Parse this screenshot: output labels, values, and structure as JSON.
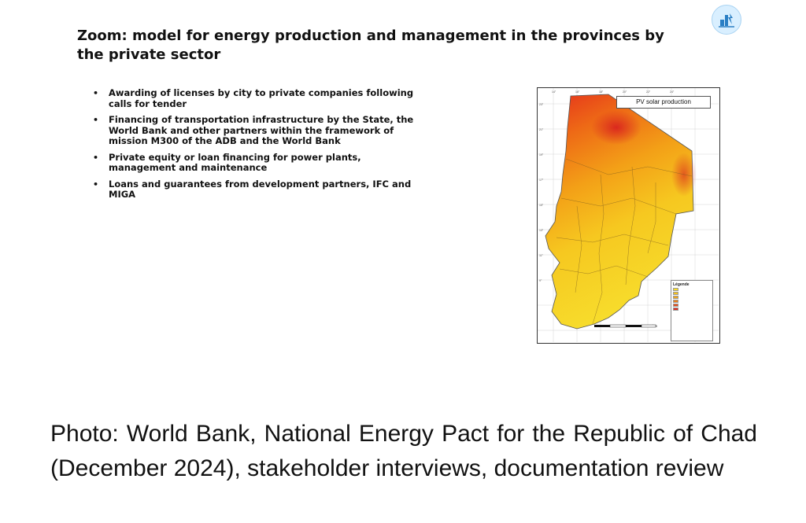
{
  "slide": {
    "logo_icon": "energy-logo-icon",
    "title": "Zoom: model for energy production and management in the provinces by the private sector",
    "bullets": [
      "Awarding of licenses by city to private companies following calls for tender",
      "Financing of transportation infrastructure by the State, the World Bank and other partners within the framework of mission M300 of the ADB and the World Bank",
      "Private equity or loan financing for power plants, management and maintenance",
      "Loans and guarantees from development partners, IFC and MIGA"
    ],
    "map": {
      "title": "PV solar production",
      "legend": {
        "title": "Légende",
        "colors": [
          "#f7dc2a",
          "#f6c21d",
          "#f3a516",
          "#ee7f14",
          "#e8501a",
          "#de2a1e"
        ]
      },
      "scale": [
        "0",
        "100",
        "200",
        "300",
        "400 km"
      ]
    }
  },
  "caption": "Photo: World Bank, National Energy Pact for the Republic of Chad (December 2024), stakeholder interviews, documentation review"
}
